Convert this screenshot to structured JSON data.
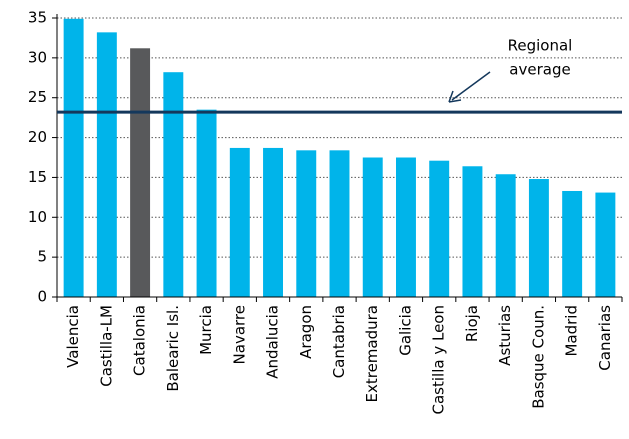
{
  "chart_data": {
    "type": "bar",
    "categories": [
      "Valencia",
      "Castilla-LM",
      "Catalonia",
      "Balearic Isl.",
      "Murcia",
      "Navarre",
      "Andalucia",
      "Aragon",
      "Cantabria",
      "Extremadura",
      "Galicia",
      "Castilla y Leon",
      "Rioja",
      "Asturias",
      "Basque Coun.",
      "Madrid",
      "Canarias"
    ],
    "values": [
      34.9,
      33.2,
      31.2,
      28.2,
      23.5,
      18.7,
      18.7,
      18.4,
      18.4,
      17.5,
      17.5,
      17.1,
      16.4,
      15.4,
      14.8,
      13.3,
      13.1
    ],
    "colors": [
      "#00b4ea",
      "#00b4ea",
      "#58595b",
      "#00b4ea",
      "#00b4ea",
      "#00b4ea",
      "#00b4ea",
      "#00b4ea",
      "#00b4ea",
      "#00b4ea",
      "#00b4ea",
      "#00b4ea",
      "#00b4ea",
      "#00b4ea",
      "#00b4ea",
      "#00b4ea",
      "#00b4ea"
    ],
    "ylim": [
      0,
      35
    ],
    "yticks": [
      0,
      5,
      10,
      15,
      20,
      25,
      30,
      35
    ],
    "grid": true,
    "average": {
      "value": 23.2,
      "color": "#14385c",
      "label_lines": [
        "Regional",
        "average"
      ]
    }
  }
}
